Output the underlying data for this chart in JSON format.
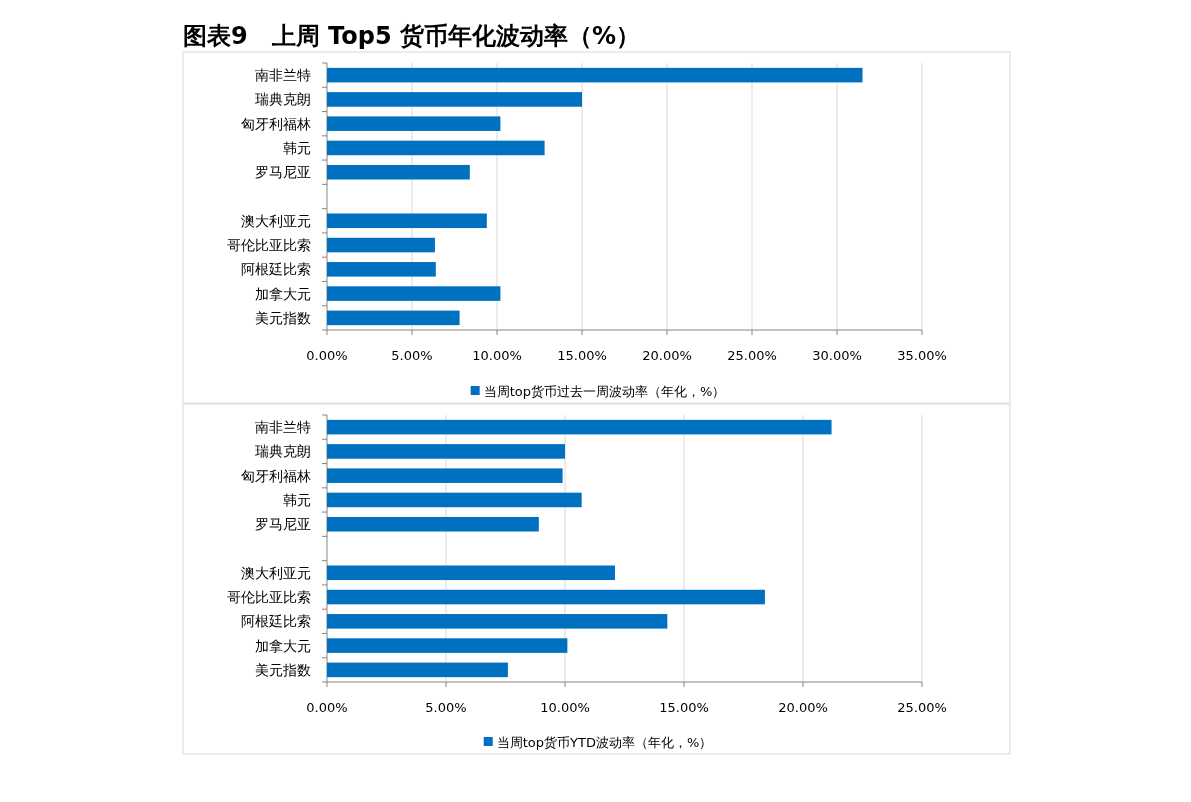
{
  "chart_data": [
    {
      "type": "bar",
      "orientation": "horizontal",
      "title": "图表9　上周 Top5 货币年化波动率（%）",
      "categories": [
        "南非兰特",
        "瑞典克朗",
        "匈牙利福林",
        "韩元",
        "罗马尼亚",
        null,
        "澳大利亚元",
        "哥伦比亚比索",
        "阿根廷比索",
        "加拿大元",
        "美元指数"
      ],
      "series": [
        {
          "name": "当周top货币过去一周波动率（年化，%）",
          "color": "#0070c0",
          "values": [
            31.5,
            15.0,
            10.2,
            12.8,
            8.4,
            null,
            9.4,
            6.35,
            6.4,
            10.2,
            7.8
          ]
        }
      ],
      "xlim": [
        0,
        35
      ],
      "xticks": [
        {
          "value": 0,
          "label": "0.00%"
        },
        {
          "value": 5,
          "label": "5.00%"
        },
        {
          "value": 10,
          "label": "10.00%"
        },
        {
          "value": 15,
          "label": "15.00%"
        },
        {
          "value": 20,
          "label": "20.00%"
        },
        {
          "value": 25,
          "label": "25.00%"
        },
        {
          "value": 30,
          "label": "30.00%"
        },
        {
          "value": 35,
          "label": "35.00%"
        }
      ],
      "grid": "x",
      "legend": "bottom"
    },
    {
      "type": "bar",
      "orientation": "horizontal",
      "categories": [
        "南非兰特",
        "瑞典克朗",
        "匈牙利福林",
        "韩元",
        "罗马尼亚",
        null,
        "澳大利亚元",
        "哥伦比亚比索",
        "阿根廷比索",
        "加拿大元",
        "美元指数"
      ],
      "series": [
        {
          "name": "当周top货币YTD波动率（年化，%）",
          "color": "#0070c0",
          "values": [
            21.2,
            10.0,
            9.9,
            10.7,
            8.9,
            null,
            12.1,
            18.4,
            14.3,
            10.1,
            7.6
          ]
        }
      ],
      "xlim": [
        0,
        25
      ],
      "xticks": [
        {
          "value": 0,
          "label": "0.00%"
        },
        {
          "value": 5,
          "label": "5.00%"
        },
        {
          "value": 10,
          "label": "10.00%"
        },
        {
          "value": 15,
          "label": "15.00%"
        },
        {
          "value": 20,
          "label": "20.00%"
        },
        {
          "value": 25,
          "label": "25.00%"
        }
      ],
      "grid": "x",
      "legend": "bottom"
    }
  ]
}
